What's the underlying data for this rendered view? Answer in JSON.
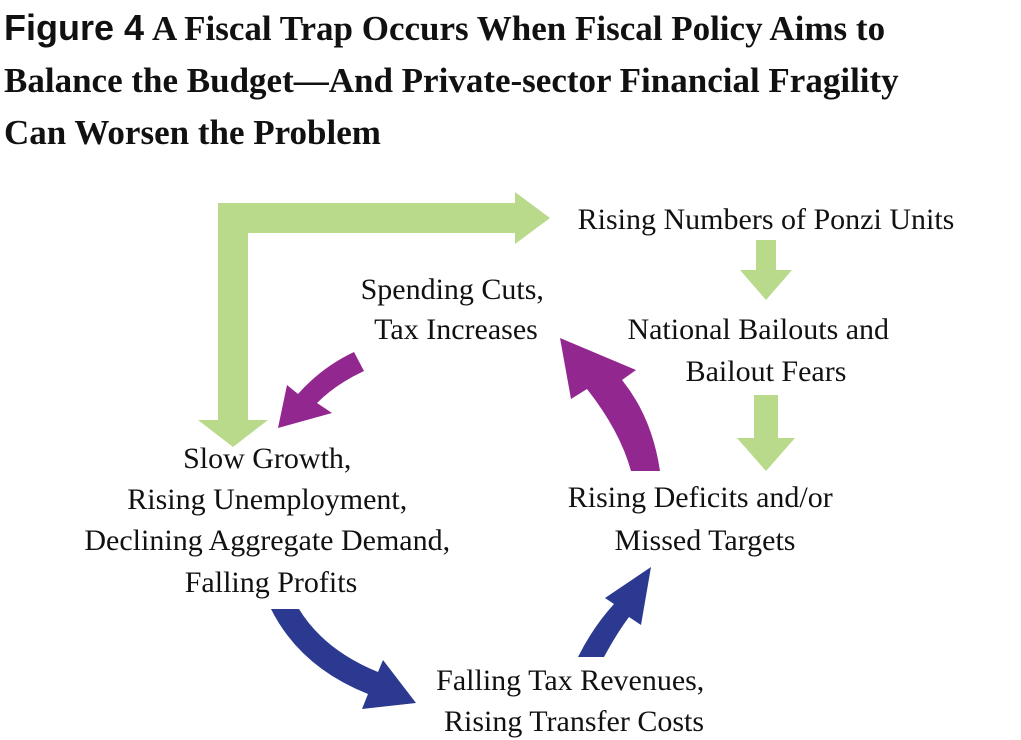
{
  "figure": {
    "label": "Figure 4",
    "title_lines": [
      "A Fiscal Trap Occurs When Fiscal Policy Aims to",
      "Balance the Budget—And Private-sector Financial Fragility",
      "Can Worsen the Problem"
    ]
  },
  "nodes": {
    "ponzi": {
      "lines": [
        "Rising Numbers of Ponzi Units"
      ]
    },
    "bailouts": {
      "lines": [
        "National Bailouts and",
        "Bailout Fears"
      ]
    },
    "deficits": {
      "lines": [
        "Rising Deficits and/or",
        "Missed Targets"
      ]
    },
    "spending": {
      "lines": [
        "Spending Cuts,",
        "Tax Increases"
      ]
    },
    "growth": {
      "lines": [
        "Slow Growth,",
        "Rising Unemployment,",
        "Declining Aggregate Demand,",
        "Falling Profits"
      ]
    },
    "revenues": {
      "lines": [
        "Falling Tax Revenues,",
        "Rising Transfer Costs"
      ]
    }
  },
  "colors": {
    "green": "#b8da8a",
    "purple": "#92278f",
    "navy": "#2b3990",
    "text": "#111111"
  }
}
